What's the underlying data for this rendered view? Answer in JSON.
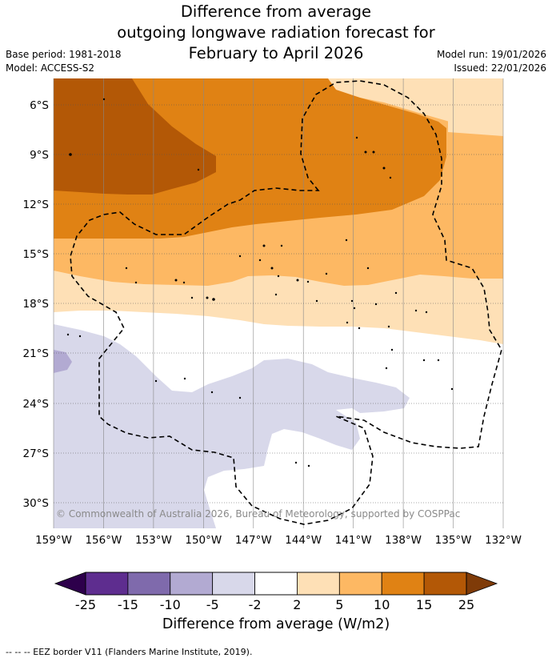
{
  "title": {
    "line1": "Difference from average",
    "line2": "outgoing longwave radiation forecast for",
    "line3": "February to April 2026"
  },
  "meta_left": {
    "base_period": "Base period: 1981-2018",
    "model": "Model: ACCESS-S2"
  },
  "meta_right": {
    "model_run": "Model run: 19/01/2026",
    "issued": "Issued: 22/01/2026"
  },
  "map": {
    "lat_ticks": [
      "6°S",
      "9°S",
      "12°S",
      "15°S",
      "18°S",
      "21°S",
      "24°S",
      "27°S",
      "30°S"
    ],
    "lon_ticks": [
      "159°W",
      "156°W",
      "153°W",
      "150°W",
      "147°W",
      "144°W",
      "141°W",
      "138°W",
      "135°W",
      "132°W"
    ],
    "copyright": "© Commonwealth of Australia 2026, Bureau of Meteorology, supported by COSPPac"
  },
  "colorbar": {
    "labels": [
      "-25",
      "-15",
      "-10",
      "-5",
      "-2",
      "2",
      "5",
      "10",
      "15",
      "25"
    ],
    "colors": [
      "#5e2d8f",
      "#7f6aac",
      "#b2aad2",
      "#d8d8ea",
      "#ffffff",
      "#fee0b6",
      "#fdb863",
      "#e08214",
      "#b35806"
    ],
    "under_color": "#2d004b",
    "over_color": "#7f3b08",
    "title": "Difference from average (W/m2)"
  },
  "footer": "--  --  -- EEZ border V11 (Flanders Marine Institute, 2019)."
}
